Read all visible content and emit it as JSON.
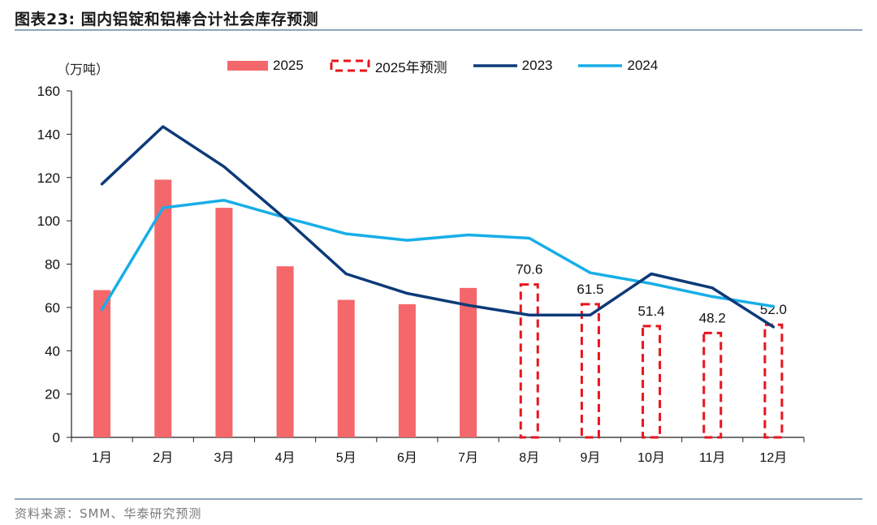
{
  "figure": {
    "title": "图表23:   国内铝锭和铝棒合计社会库存预测",
    "source": "资料来源：SMM、华泰研究预测"
  },
  "colors": {
    "bar2025": "#f4676a",
    "forecast": "#e8141c",
    "line2023": "#0d3a78",
    "line2024": "#17aee8",
    "rule": "#8fa3bf"
  },
  "chart_data": {
    "type": "bar",
    "unit_label": "（万吨）",
    "categories": [
      "1月",
      "2月",
      "3月",
      "4月",
      "5月",
      "6月",
      "7月",
      "8月",
      "9月",
      "10月",
      "11月",
      "12月"
    ],
    "ylim": [
      0,
      160
    ],
    "yticks": [
      0,
      20,
      40,
      60,
      80,
      100,
      120,
      140,
      160
    ],
    "legend_position": "top",
    "grid": false,
    "series": [
      {
        "name": "2025",
        "kind": "bar",
        "values": [
          68,
          119,
          106,
          79,
          63.5,
          61.5,
          69,
          null,
          null,
          null,
          null,
          null
        ]
      },
      {
        "name": "2025年预测",
        "kind": "bar-dashed",
        "values": [
          null,
          null,
          null,
          null,
          null,
          null,
          null,
          70.6,
          61.5,
          51.4,
          48.2,
          52.0
        ],
        "labels": [
          "",
          "",
          "",
          "",
          "",
          "",
          "",
          "70.6",
          "61.5",
          "51.4",
          "48.2",
          "52.0"
        ]
      },
      {
        "name": "2023",
        "kind": "line",
        "values": [
          117,
          143.5,
          125,
          101,
          75.5,
          66.5,
          61,
          56.5,
          56.5,
          75.5,
          69,
          51
        ]
      },
      {
        "name": "2024",
        "kind": "line",
        "values": [
          59,
          106,
          109.5,
          101.5,
          94,
          91,
          93.5,
          92,
          76,
          71,
          65,
          60.5
        ]
      }
    ]
  }
}
